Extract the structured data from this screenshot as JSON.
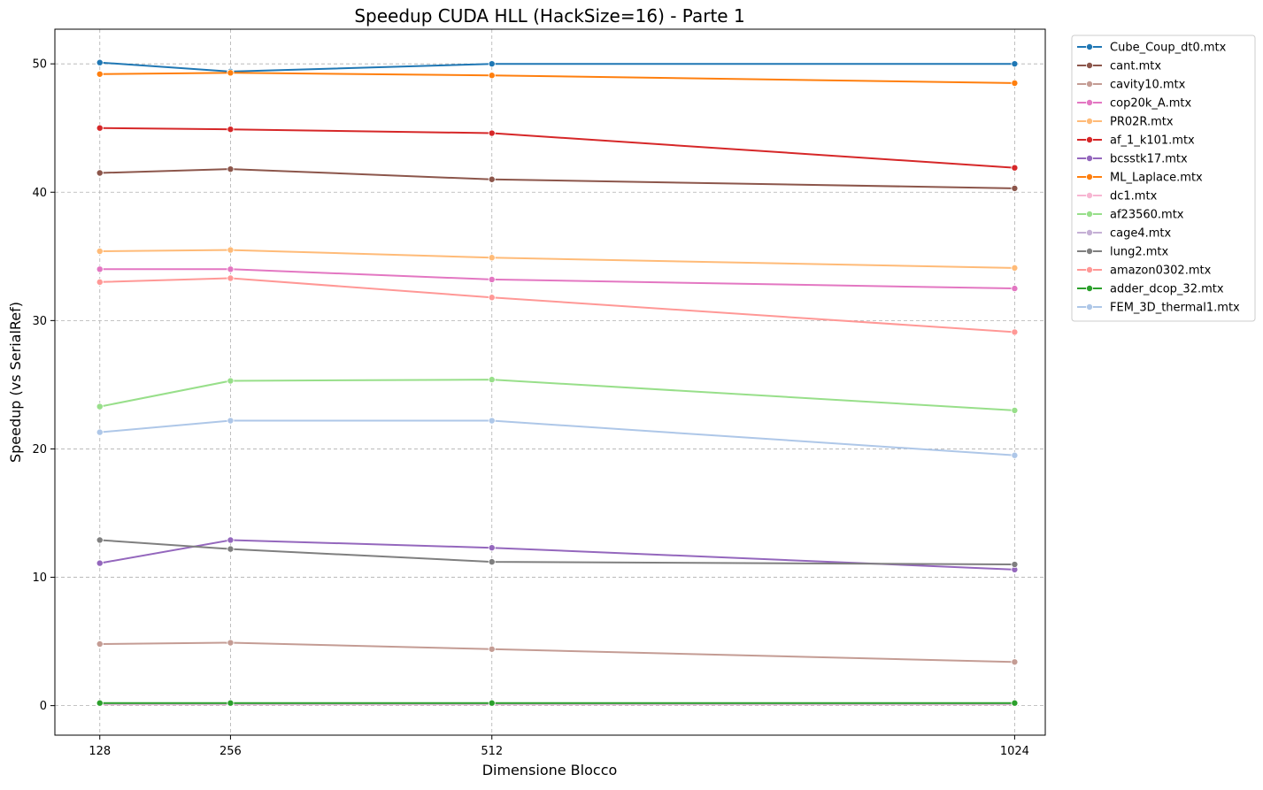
{
  "chart_data": {
    "type": "line",
    "title": "Speedup CUDA HLL (HackSize=16) - Parte 1",
    "xlabel": "Dimensione Blocco",
    "ylabel": "Speedup (vs SerialRef)",
    "x": [
      128,
      256,
      512,
      1024
    ],
    "x_tick_labels": [
      "128",
      "256",
      "512",
      "1024"
    ],
    "xlim": [
      84,
      1054
    ],
    "ylim": [
      -2.3,
      52.7
    ],
    "y_ticks": [
      0,
      10,
      20,
      30,
      40,
      50
    ],
    "grid": true,
    "legend_position": "outside-top-right",
    "marker": "circle",
    "series": [
      {
        "name": "Cube_Coup_dt0.mtx",
        "color": "#1f77b4",
        "values": [
          50.1,
          49.4,
          50.0,
          50.0
        ]
      },
      {
        "name": "cant.mtx",
        "color": "#8c564b",
        "values": [
          41.5,
          41.8,
          41.0,
          40.3
        ]
      },
      {
        "name": "cavity10.mtx",
        "color": "#c49c94",
        "values": [
          4.8,
          4.9,
          4.4,
          3.4
        ]
      },
      {
        "name": "cop20k_A.mtx",
        "color": "#e377c2",
        "values": [
          34.0,
          34.0,
          33.2,
          32.5
        ]
      },
      {
        "name": "PR02R.mtx",
        "color": "#ffbb78",
        "values": [
          35.4,
          35.5,
          34.9,
          34.1
        ]
      },
      {
        "name": "af_1_k101.mtx",
        "color": "#d62728",
        "values": [
          45.0,
          44.9,
          44.6,
          41.9
        ]
      },
      {
        "name": "bcsstk17.mtx",
        "color": "#9467bd",
        "values": [
          11.1,
          12.9,
          12.3,
          10.6
        ]
      },
      {
        "name": "ML_Laplace.mtx",
        "color": "#ff7f0e",
        "values": [
          49.2,
          49.3,
          49.1,
          48.5
        ]
      },
      {
        "name": "dc1.mtx",
        "color": "#f7b6d2",
        "values": [
          0.1,
          0.1,
          0.1,
          0.1
        ]
      },
      {
        "name": "af23560.mtx",
        "color": "#98df8a",
        "values": [
          23.3,
          25.3,
          25.4,
          23.0
        ]
      },
      {
        "name": "cage4.mtx",
        "color": "#c5b0d5",
        "values": [
          0.15,
          0.15,
          0.15,
          0.15
        ]
      },
      {
        "name": "lung2.mtx",
        "color": "#7f7f7f",
        "values": [
          12.9,
          12.2,
          11.2,
          11.0
        ]
      },
      {
        "name": "amazon0302.mtx",
        "color": "#ff9896",
        "values": [
          33.0,
          33.3,
          31.8,
          29.1
        ]
      },
      {
        "name": "adder_dcop_32.mtx",
        "color": "#2ca02c",
        "values": [
          0.2,
          0.2,
          0.2,
          0.2
        ]
      },
      {
        "name": "FEM_3D_thermal1.mtx",
        "color": "#aec7e8",
        "values": [
          21.3,
          22.2,
          22.2,
          19.5
        ]
      }
    ]
  }
}
